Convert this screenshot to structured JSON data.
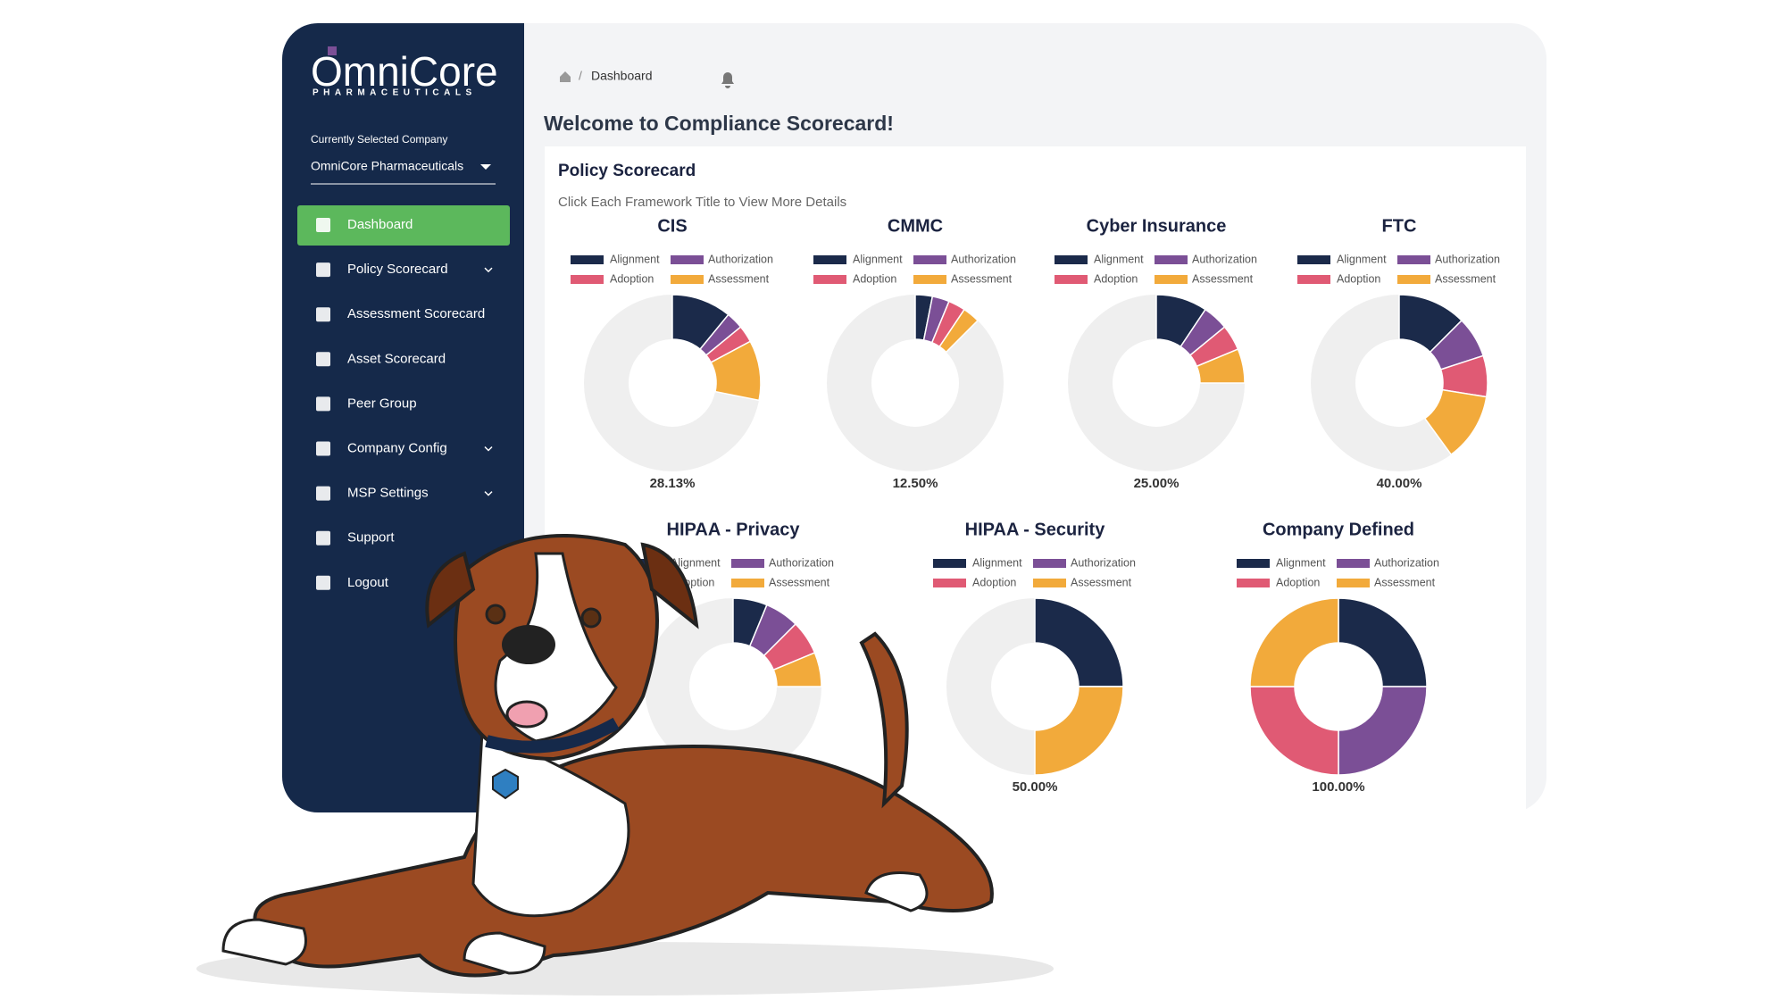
{
  "sidebar": {
    "logo": {
      "name": "OmniCore",
      "tagline": "PHARMACEUTICALS"
    },
    "company_label": "Currently Selected Company",
    "company": "OmniCore Pharmaceuticals",
    "menu": [
      {
        "label": "Dashboard",
        "active": true
      },
      {
        "label": "Policy Scorecard",
        "expandable": true
      },
      {
        "label": "Assessment Scorecard"
      },
      {
        "label": "Asset Scorecard"
      },
      {
        "label": "Peer Group"
      },
      {
        "label": "Company Config",
        "expandable": true
      },
      {
        "label": "MSP Settings",
        "expandable": true
      },
      {
        "label": "Support"
      },
      {
        "label": "Logout"
      }
    ]
  },
  "breadcrumb": "Dashboard",
  "title": "Welcome to Compliance Scorecard!",
  "scorecard": {
    "title": "Policy Scorecard",
    "subtitle": "Click Each Framework Title to View More Details",
    "charts": [
      {
        "type": "donut",
        "title": "CIS",
        "total_label": "28.13%",
        "series": [
          {
            "name": "Alignment",
            "color": "#1b2a4a",
            "value": 10.93
          },
          {
            "name": "Authorization",
            "color": "#7b4f96",
            "value": 3.13
          },
          {
            "name": "Adoption",
            "color": "#e05a74",
            "value": 3.13
          },
          {
            "name": "Assessment",
            "color": "#f2aa3b",
            "value": 10.94
          }
        ]
      },
      {
        "type": "donut",
        "title": "CMMC",
        "total_label": "12.50%",
        "series": [
          {
            "name": "Alignment",
            "color": "#1b2a4a",
            "value": 3.13
          },
          {
            "name": "Authorization",
            "color": "#7b4f96",
            "value": 3.12
          },
          {
            "name": "Adoption",
            "color": "#e05a74",
            "value": 3.12
          },
          {
            "name": "Assessment",
            "color": "#f2aa3b",
            "value": 3.13
          }
        ]
      },
      {
        "type": "donut",
        "title": "Cyber Insurance",
        "total_label": "25.00%",
        "series": [
          {
            "name": "Alignment",
            "color": "#1b2a4a",
            "value": 9.37
          },
          {
            "name": "Authorization",
            "color": "#7b4f96",
            "value": 4.69
          },
          {
            "name": "Adoption",
            "color": "#e05a74",
            "value": 4.69
          },
          {
            "name": "Assessment",
            "color": "#f2aa3b",
            "value": 6.25
          }
        ]
      },
      {
        "type": "donut",
        "title": "FTC",
        "total_label": "40.00%",
        "series": [
          {
            "name": "Alignment",
            "color": "#1b2a4a",
            "value": 12.5
          },
          {
            "name": "Authorization",
            "color": "#7b4f96",
            "value": 7.5
          },
          {
            "name": "Adoption",
            "color": "#e05a74",
            "value": 7.5
          },
          {
            "name": "Assessment",
            "color": "#f2aa3b",
            "value": 12.5
          }
        ]
      },
      {
        "type": "donut",
        "title": "HIPAA - Privacy",
        "series": [
          {
            "name": "Alignment",
            "color": "#1b2a4a",
            "value": 6.25
          },
          {
            "name": "Authorization",
            "color": "#7b4f96",
            "value": 6.25
          },
          {
            "name": "Adoption",
            "color": "#e05a74",
            "value": 6.25
          },
          {
            "name": "Assessment",
            "color": "#f2aa3b",
            "value": 6.25
          }
        ]
      },
      {
        "type": "donut",
        "title": "HIPAA - Security",
        "total_label": "50.00%",
        "series": [
          {
            "name": "Alignment",
            "color": "#1b2a4a",
            "value": 25
          },
          {
            "name": "Authorization",
            "color": "#7b4f96",
            "value": 0
          },
          {
            "name": "Adoption",
            "color": "#e05a74",
            "value": 0
          },
          {
            "name": "Assessment",
            "color": "#f2aa3b",
            "value": 25
          }
        ]
      },
      {
        "type": "donut",
        "title": "Company Defined",
        "total_label": "100.00%",
        "series": [
          {
            "name": "Alignment",
            "color": "#1b2a4a",
            "value": 25
          },
          {
            "name": "Authorization",
            "color": "#7b4f96",
            "value": 25
          },
          {
            "name": "Adoption",
            "color": "#e05a74",
            "value": 25
          },
          {
            "name": "Assessment",
            "color": "#f2aa3b",
            "value": 25
          }
        ]
      }
    ]
  }
}
